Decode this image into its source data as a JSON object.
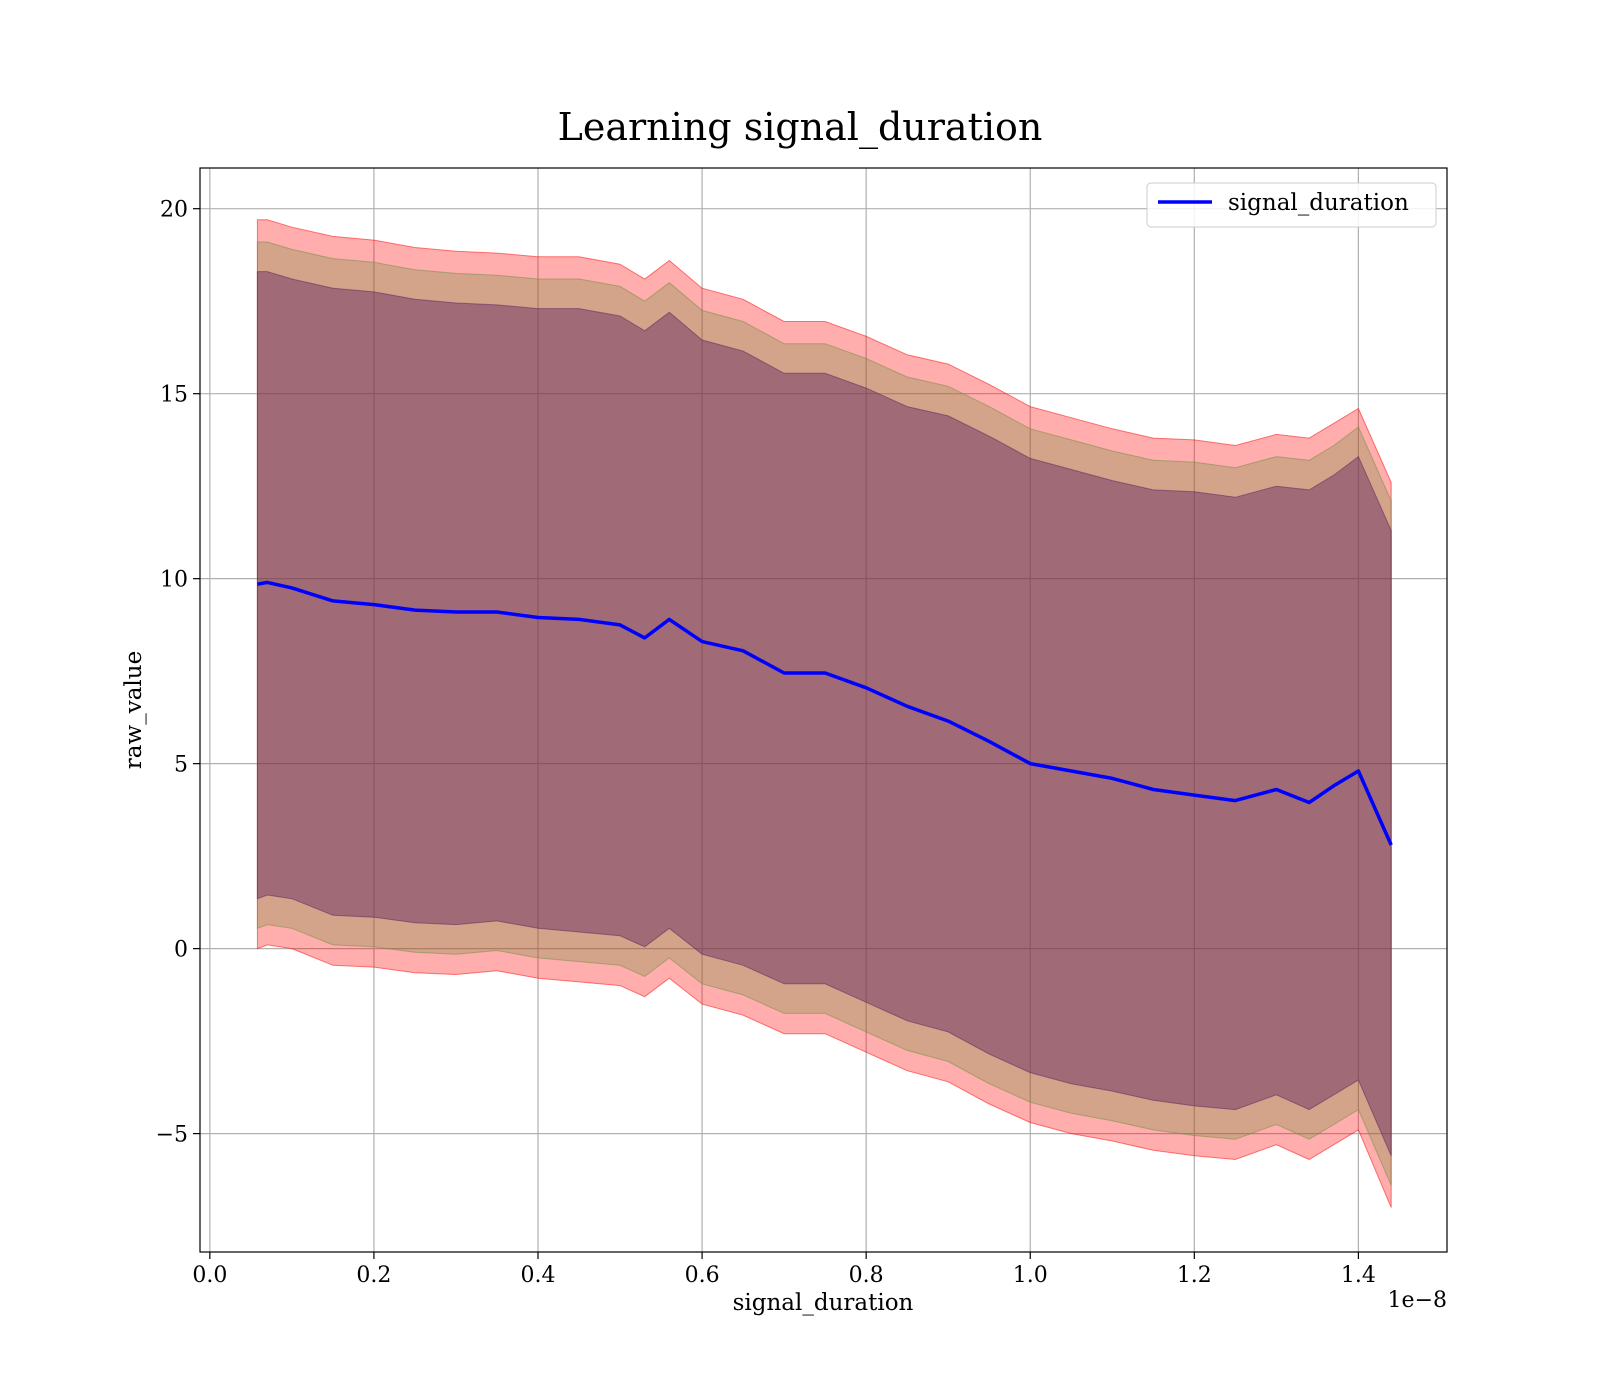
{
  "chart_data": {
    "type": "line",
    "title": "Learning signal_duration",
    "xlabel": "signal_duration",
    "ylabel": "raw_value",
    "x_offset_label": "1e−8",
    "xlim": [
      -0.012,
      1.508
    ],
    "ylim": [
      -8.2,
      21.1
    ],
    "grid": true,
    "legend_placement": "top-right",
    "x_ticks": [
      {
        "value": 0.0,
        "label": "0.0"
      },
      {
        "value": 0.2,
        "label": "0.2"
      },
      {
        "value": 0.4,
        "label": "0.4"
      },
      {
        "value": 0.6,
        "label": "0.6"
      },
      {
        "value": 0.8,
        "label": "0.8"
      },
      {
        "value": 1.0,
        "label": "1.0"
      },
      {
        "value": 1.2,
        "label": "1.2"
      },
      {
        "value": 1.4,
        "label": "1.4"
      }
    ],
    "y_ticks": [
      {
        "value": -5,
        "label": "−5"
      },
      {
        "value": 0,
        "label": "0"
      },
      {
        "value": 5,
        "label": "5"
      },
      {
        "value": 10,
        "label": "10"
      },
      {
        "value": 15,
        "label": "15"
      },
      {
        "value": 20,
        "label": "20"
      }
    ],
    "series": [
      {
        "name": "signal_duration",
        "color": "#0000ff",
        "x": [
          0.058,
          0.07,
          0.1,
          0.15,
          0.2,
          0.25,
          0.3,
          0.35,
          0.4,
          0.45,
          0.5,
          0.53,
          0.56,
          0.6,
          0.65,
          0.7,
          0.75,
          0.8,
          0.85,
          0.9,
          0.95,
          1.0,
          1.05,
          1.1,
          1.15,
          1.2,
          1.25,
          1.3,
          1.34,
          1.37,
          1.4,
          1.44
        ],
        "y": [
          9.85,
          9.9,
          9.75,
          9.4,
          9.3,
          9.15,
          9.1,
          9.1,
          8.95,
          8.9,
          8.75,
          8.4,
          8.9,
          8.3,
          8.05,
          7.45,
          7.45,
          7.05,
          6.55,
          6.15,
          5.6,
          5.0,
          4.8,
          4.6,
          4.3,
          4.15,
          4.0,
          4.3,
          3.95,
          4.4,
          4.8,
          2.8
        ]
      }
    ],
    "bands": [
      {
        "color": "#ff0000",
        "opacity": 0.32,
        "upper": [
          19.7,
          19.7,
          19.5,
          19.25,
          19.15,
          18.95,
          18.85,
          18.8,
          18.7,
          18.7,
          18.5,
          18.1,
          18.6,
          17.85,
          17.55,
          16.95,
          16.95,
          16.55,
          16.05,
          15.8,
          15.25,
          14.65,
          14.35,
          14.05,
          13.8,
          13.75,
          13.6,
          13.9,
          13.8,
          14.2,
          14.6,
          12.6
        ],
        "lower": [
          0.0,
          0.1,
          -0.0,
          -0.45,
          -0.5,
          -0.65,
          -0.7,
          -0.6,
          -0.8,
          -0.9,
          -1.0,
          -1.3,
          -0.8,
          -1.5,
          -1.8,
          -2.3,
          -2.3,
          -2.8,
          -3.3,
          -3.6,
          -4.2,
          -4.7,
          -5.0,
          -5.2,
          -5.45,
          -5.6,
          -5.7,
          -5.3,
          -5.7,
          -5.3,
          -4.9,
          -7.0
        ]
      },
      {
        "color": "#6e8f3c",
        "opacity": 0.3,
        "upper": [
          19.1,
          19.1,
          18.9,
          18.65,
          18.55,
          18.35,
          18.25,
          18.2,
          18.1,
          18.1,
          17.9,
          17.5,
          18.0,
          17.25,
          16.95,
          16.35,
          16.35,
          15.95,
          15.45,
          15.2,
          14.65,
          14.05,
          13.75,
          13.45,
          13.2,
          13.15,
          13.0,
          13.3,
          13.2,
          13.6,
          14.1,
          12.1
        ],
        "lower": [
          0.55,
          0.65,
          0.55,
          0.1,
          0.05,
          -0.1,
          -0.15,
          -0.05,
          -0.25,
          -0.35,
          -0.45,
          -0.75,
          -0.25,
          -0.95,
          -1.25,
          -1.75,
          -1.75,
          -2.25,
          -2.75,
          -3.05,
          -3.65,
          -4.15,
          -4.45,
          -4.65,
          -4.9,
          -5.05,
          -5.15,
          -4.75,
          -5.15,
          -4.75,
          -4.35,
          -6.4
        ]
      },
      {
        "color": "#5a1e5e",
        "opacity": 0.42,
        "upper": [
          18.3,
          18.3,
          18.1,
          17.85,
          17.75,
          17.55,
          17.45,
          17.4,
          17.3,
          17.3,
          17.1,
          16.7,
          17.2,
          16.45,
          16.15,
          15.55,
          15.55,
          15.15,
          14.65,
          14.4,
          13.85,
          13.25,
          12.95,
          12.65,
          12.4,
          12.35,
          12.2,
          12.5,
          12.4,
          12.8,
          13.3,
          11.3
        ],
        "lower": [
          1.35,
          1.45,
          1.35,
          0.9,
          0.85,
          0.7,
          0.65,
          0.75,
          0.55,
          0.45,
          0.35,
          0.05,
          0.55,
          -0.15,
          -0.45,
          -0.95,
          -0.95,
          -1.45,
          -1.95,
          -2.25,
          -2.85,
          -3.35,
          -3.65,
          -3.85,
          -4.1,
          -4.25,
          -4.35,
          -3.95,
          -4.35,
          -3.95,
          -3.55,
          -5.6
        ]
      }
    ]
  }
}
